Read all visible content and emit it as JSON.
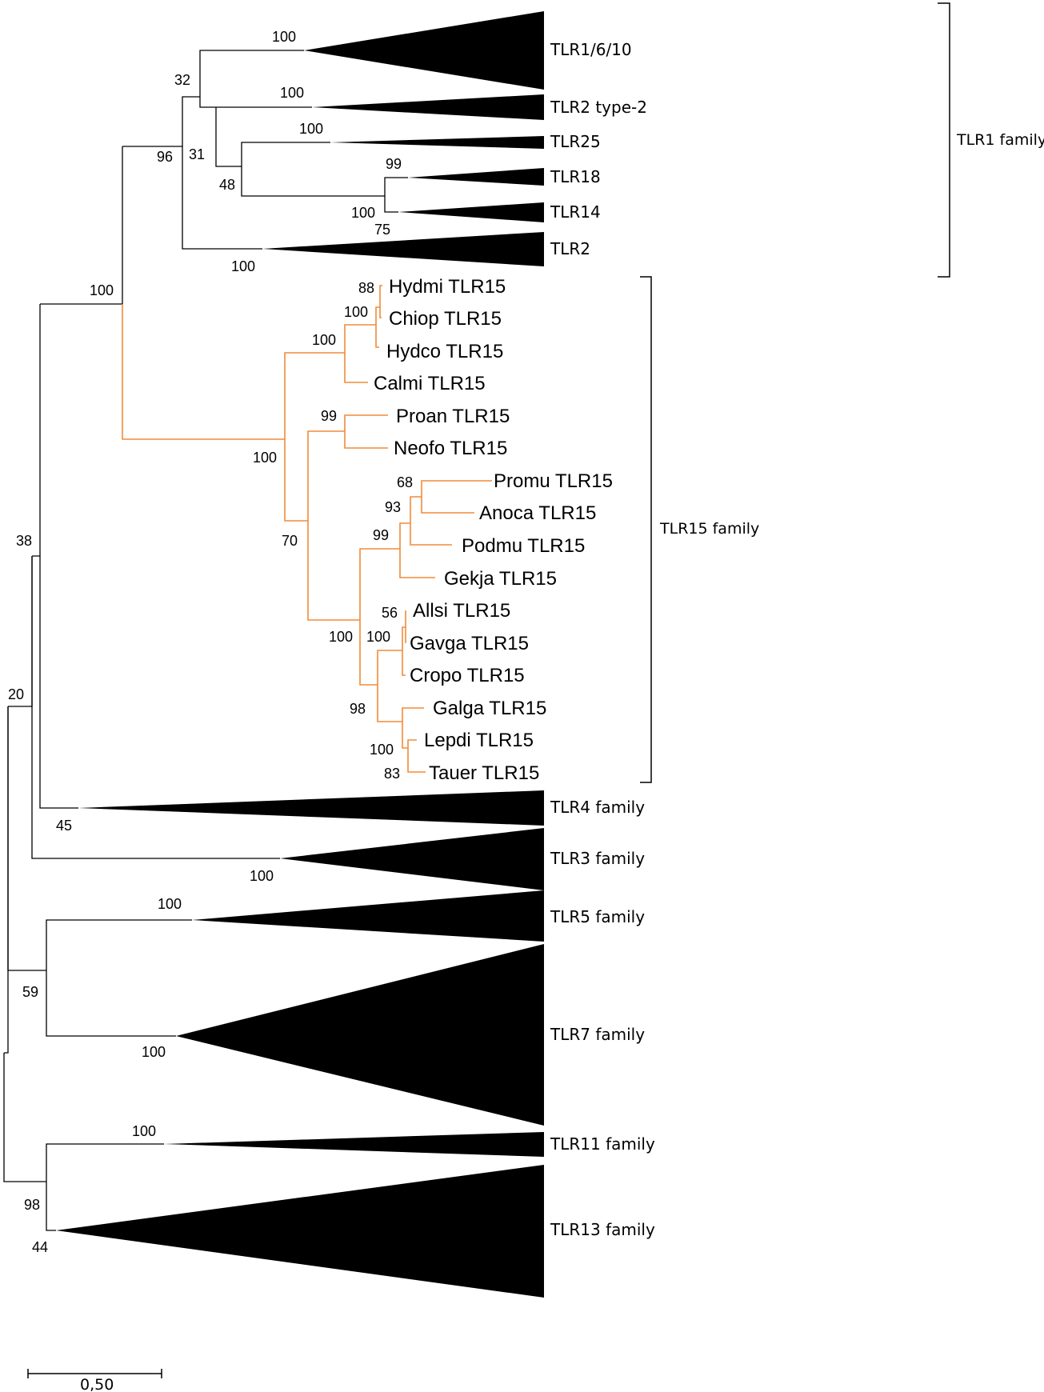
{
  "figure": {
    "clade_labels": {
      "tlr1_family": "TLR1 family",
      "tlr15_family": "TLR15 family"
    },
    "scale_bar": {
      "label": "0,50",
      "value": 0.5
    },
    "collapsed_clades": {
      "tlr1_6_10": "TLR1/6/10",
      "tlr2_type2": "TLR2 type-2",
      "tlr25": "TLR25",
      "tlr18": "TLR18",
      "tlr14": "TLR14",
      "tlr2": "TLR2",
      "tlr4_family": "TLR4 family",
      "tlr3_family": "TLR3 family",
      "tlr5_family": "TLR5 family",
      "tlr7_family": "TLR7 family",
      "tlr11_family": "TLR11 family",
      "tlr13_family": "TLR13 family"
    },
    "tlr15_leaves": {
      "hydmi": "Hydmi TLR15",
      "chiop": "Chiop TLR15",
      "hydco": "Hydco TLR15",
      "calmi": "Calmi TLR15",
      "proan": "Proan TLR15",
      "neofo": "Neofo TLR15",
      "promu": "Promu TLR15",
      "anoca": "Anoca TLR15",
      "podmu": "Podmu TLR15",
      "gekja": "Gekja TLR15",
      "allsi": "Allsi TLR15",
      "gavga": "Gavga TLR15",
      "cropo": "Cropo TLR15",
      "galga": "Galga TLR15",
      "lepdi": "Lepdi TLR15",
      "tauer": "Tauer TLR15"
    },
    "bootstrap": {
      "tlr1_6_10": "100",
      "n32": "32",
      "tlr2_type2": "100",
      "tlr25": "100",
      "n96": "96",
      "n31": "31",
      "tlr18": "99",
      "n48": "48",
      "n100_tlr18_14": "100",
      "tlr14": "75",
      "tlr2": "100",
      "n100_tlr1_tlr15": "100",
      "n88": "88",
      "n100_chiop": "100",
      "n100_hyd": "100",
      "n99_proan": "99",
      "n100_tlr15": "100",
      "n68": "68",
      "n93": "93",
      "n70": "70",
      "n99_rept": "99",
      "n38": "38",
      "n56": "56",
      "n100_rept_bird": "100",
      "n100_croc": "100",
      "n20": "20",
      "n98_bird": "98",
      "n100_lepdi": "100",
      "n83": "83",
      "tlr4": "45",
      "tlr3": "100",
      "tlr5": "100",
      "n59": "59",
      "tlr7": "100",
      "tlr11": "100",
      "n98_tlr11_13": "98",
      "tlr13": "44"
    }
  }
}
